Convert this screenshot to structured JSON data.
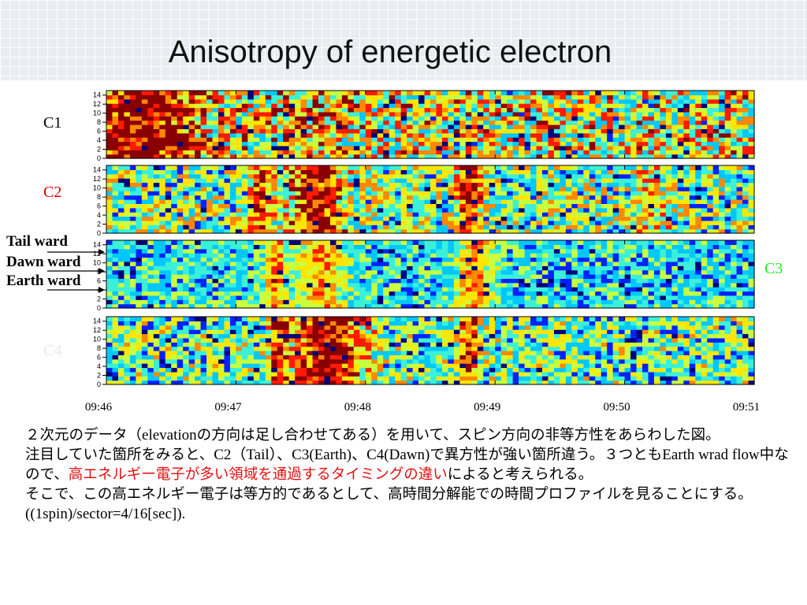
{
  "title": "Anisotropy of energetic electron",
  "chart_data": {
    "type": "heatmap",
    "panels": [
      {
        "name": "C1",
        "label_color": "#000000"
      },
      {
        "name": "C2",
        "label_color": "#e00000"
      },
      {
        "name": "C3",
        "label_color": "#22ee22"
      },
      {
        "name": "C4",
        "label_color": "#e8e8e8"
      }
    ],
    "yticks": [
      "0",
      "2",
      "4",
      "6",
      "8",
      "10",
      "12",
      "14"
    ],
    "ylim": [
      0,
      15
    ],
    "xticks": [
      "09:46",
      "09:47",
      "09:48",
      "09:49",
      "09:50",
      "09:51"
    ],
    "xlim": [
      "09:46",
      "09:51"
    ],
    "colormap": [
      "#00007a",
      "#0022ff",
      "#00c8ff",
      "#3cf0d8",
      "#c8ff40",
      "#ffe600",
      "#ff8800",
      "#ff1a00",
      "#8a0000"
    ],
    "direction_labels": [
      "Tail ward",
      "Dawn ward",
      "Earth ward"
    ]
  },
  "text": {
    "p1_a": "２次元のデータ（",
    "p1_b": "elevation",
    "p1_c": "の方向は足し合わせてある）を用いて、スピン方向の非等方性をあらわした図。",
    "p2_a": "注目していた箇所をみると、",
    "p2_b": "C2（Tail）、C3(Earth)、C4(Dawn)",
    "p2_c": "で異方性が強い箇所違う。３つとも",
    "p2_d": "Earth wrad flow",
    "p2_e": "中なので、",
    "p2_red": "高エネルギー電子が多い領域を通過するタイミングの違い",
    "p2_f": "によると考えられる。",
    "p3_a": "そこで、この高エネルギー電子は等方的であるとして、高時間分解能での時間プロファイルを見ることにする。",
    "p3_b": "((1spin)/sector=4/16[sec])."
  }
}
